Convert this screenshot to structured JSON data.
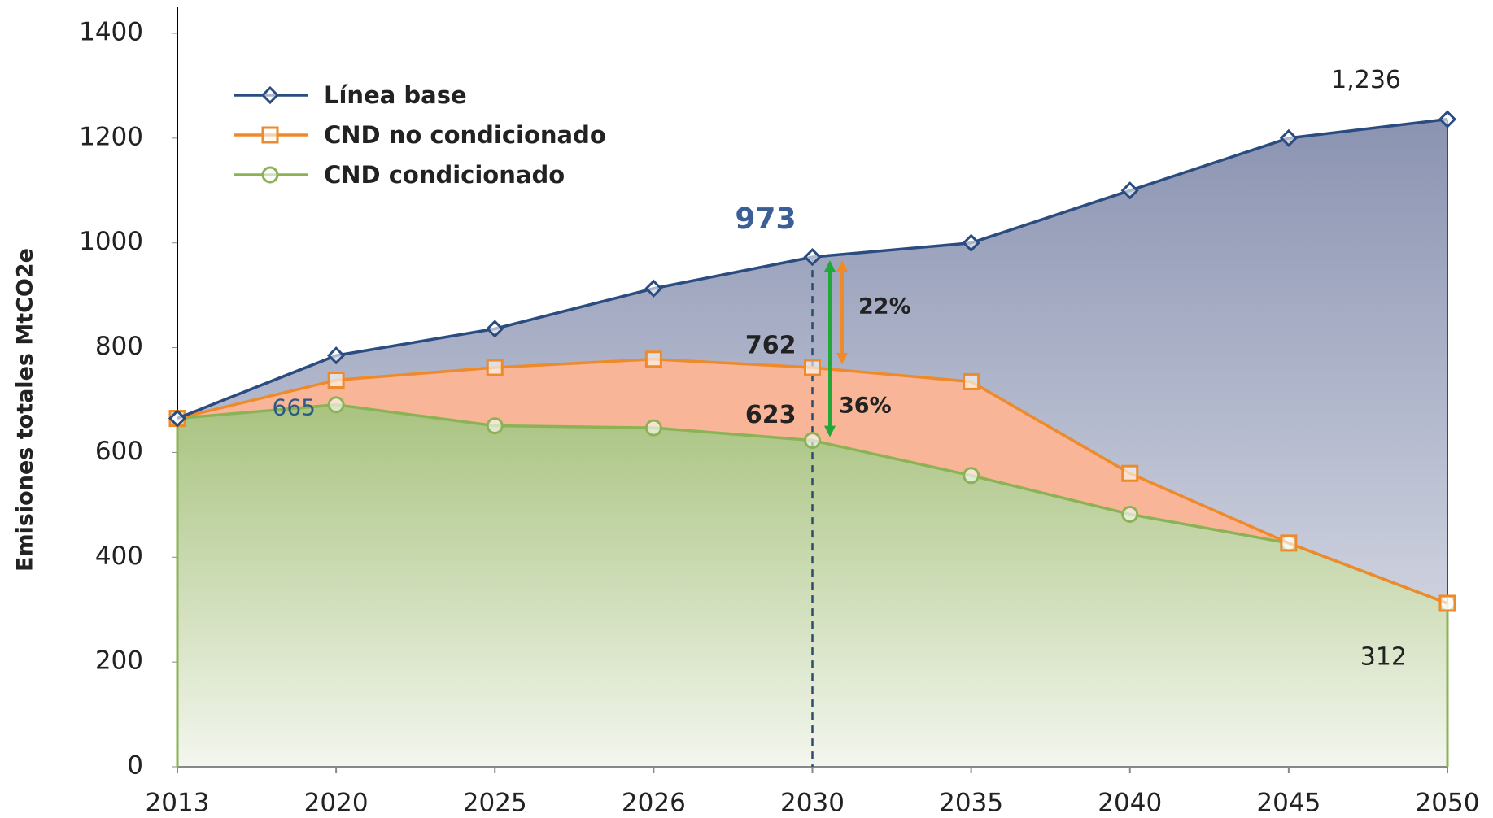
{
  "chart_data": {
    "type": "line",
    "y_label": "Emisiones totales MtCO2e",
    "categories": [
      "2013",
      "2020",
      "2025",
      "2026",
      "2030",
      "2035",
      "2040",
      "2045",
      "2050"
    ],
    "series": [
      {
        "name": "Línea base",
        "color": "#2b4c80",
        "marker": "diamond",
        "values": [
          665,
          785,
          836,
          913,
          973,
          1000,
          1100,
          1200,
          1236
        ],
        "value_labels": [
          "665",
          null,
          null,
          null,
          "973",
          null,
          null,
          null,
          "1,236"
        ]
      },
      {
        "name": "CND no condicionado",
        "color": "#ee8a2a",
        "marker": "square",
        "values": [
          665,
          738,
          762,
          778,
          762,
          735,
          560,
          427,
          312
        ],
        "value_labels": [
          null,
          null,
          null,
          null,
          "762",
          null,
          null,
          null,
          null
        ]
      },
      {
        "name": "CND condicionado",
        "color": "#8bb356",
        "marker": "circle",
        "values": [
          665,
          691,
          651,
          647,
          623,
          556,
          482,
          427,
          312
        ],
        "value_labels": [
          null,
          null,
          null,
          null,
          "623",
          null,
          null,
          null,
          "312"
        ]
      }
    ],
    "annotations": [
      "22%",
      "36%"
    ],
    "ylim": [
      0,
      1400
    ],
    "yticks": [
      0,
      200,
      400,
      600,
      800,
      1000,
      1200,
      1400
    ],
    "legend": "upper left"
  }
}
